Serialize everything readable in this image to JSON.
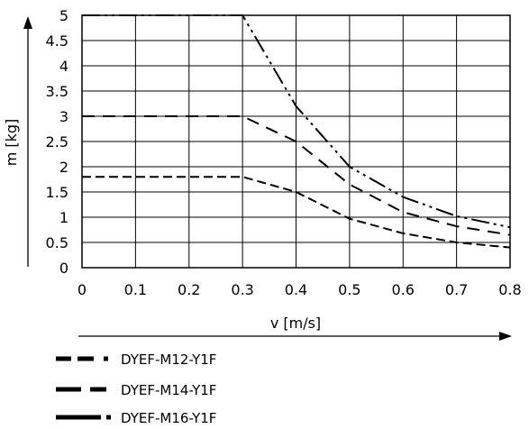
{
  "chart_data": {
    "type": "line",
    "xlabel": "v [m/s]",
    "ylabel": "m [kg]",
    "xlim": [
      0,
      0.8
    ],
    "ylim": [
      0,
      5
    ],
    "x_ticks": [
      "0",
      "0.1",
      "0.2",
      "0.3",
      "0.4",
      "0.5",
      "0.6",
      "0.7",
      "0.8"
    ],
    "y_ticks": [
      "0",
      "0.5",
      "1",
      "1.5",
      "2",
      "2.5",
      "3",
      "3.5",
      "4",
      "4.5",
      "5"
    ],
    "grid": true,
    "legend_position": "bottom-left",
    "series": [
      {
        "name": "DYEF-M12-Y1F",
        "line_style": "short-dash-dot",
        "x": [
          0,
          0.3,
          0.4,
          0.5,
          0.6,
          0.7,
          0.8
        ],
        "y": [
          1.8,
          1.8,
          1.5,
          0.97,
          0.68,
          0.5,
          0.4
        ]
      },
      {
        "name": "DYEF-M14-Y1F",
        "line_style": "long-dash",
        "x": [
          0,
          0.3,
          0.4,
          0.5,
          0.6,
          0.7,
          0.8
        ],
        "y": [
          3.0,
          3.0,
          2.5,
          1.65,
          1.1,
          0.82,
          0.65
        ]
      },
      {
        "name": "DYEF-M16-Y1F",
        "line_style": "long-dash-dot-dot",
        "x": [
          0,
          0.3,
          0.4,
          0.5,
          0.6,
          0.7,
          0.8
        ],
        "y": [
          5.0,
          5.0,
          3.2,
          2.0,
          1.4,
          1.02,
          0.8
        ]
      }
    ]
  }
}
